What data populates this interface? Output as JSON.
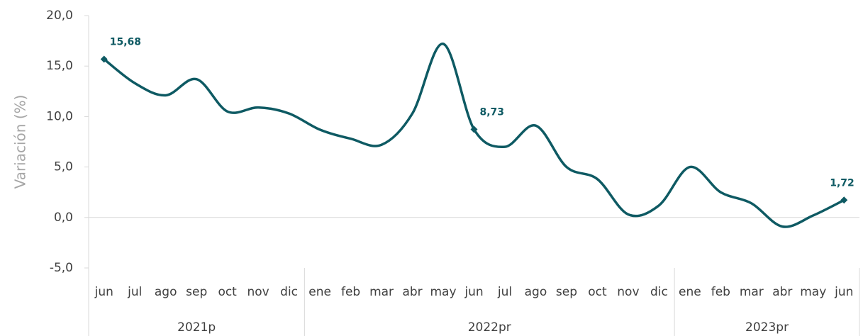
{
  "chart_data": {
    "type": "line",
    "y_label": "Variación (%)",
    "groups": [
      {
        "label": "2021p",
        "categories": [
          "jun",
          "jul",
          "ago",
          "sep",
          "oct",
          "nov",
          "dic"
        ]
      },
      {
        "label": "2022pr",
        "categories": [
          "ene",
          "feb",
          "mar",
          "abr",
          "may",
          "jun",
          "jul",
          "ago",
          "sep",
          "oct",
          "nov",
          "dic"
        ]
      },
      {
        "label": "2023pr",
        "categories": [
          "ene",
          "feb",
          "mar",
          "abr",
          "may",
          "jun"
        ]
      }
    ],
    "series": [
      {
        "color": "#0e5a63",
        "values": [
          15.68,
          13.3,
          12.1,
          13.7,
          10.5,
          10.9,
          10.3,
          8.7,
          7.8,
          7.2,
          10.3,
          17.2,
          8.73,
          7.0,
          9.1,
          5.0,
          3.8,
          0.3,
          1.2,
          5.0,
          2.5,
          1.4,
          -0.9,
          0.2,
          1.72
        ],
        "value_labels": [
          "15,68",
          null,
          null,
          null,
          null,
          null,
          null,
          null,
          null,
          null,
          null,
          null,
          "8,73",
          null,
          null,
          null,
          null,
          null,
          null,
          null,
          null,
          null,
          null,
          null,
          "1,72"
        ]
      }
    ],
    "ylim": [
      -5,
      20
    ],
    "yticks": [
      {
        "value": -5,
        "label": "-5,0"
      },
      {
        "value": 0,
        "label": "0,0"
      },
      {
        "value": 5,
        "label": "5,0"
      },
      {
        "value": 10,
        "label": "10,0"
      },
      {
        "value": 15,
        "label": "15,0"
      },
      {
        "value": 20,
        "label": "20,0"
      }
    ]
  }
}
